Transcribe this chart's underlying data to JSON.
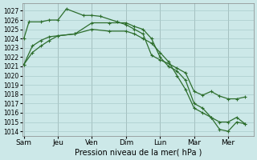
{
  "background_color": "#cce8e8",
  "grid_color": "#aacccc",
  "line_color": "#2d6e2d",
  "xlabel_text": "Pression niveau de la mer( hPa )",
  "ylim": [
    1013.5,
    1027.8
  ],
  "yticks": [
    1014,
    1015,
    1016,
    1017,
    1018,
    1019,
    1020,
    1021,
    1022,
    1023,
    1024,
    1025,
    1026,
    1027
  ],
  "x_labels": [
    "Sam",
    "Jeu",
    "Ven",
    "Dim",
    "Lun",
    "Mar",
    "Mer"
  ],
  "x_positions": [
    0,
    2,
    4,
    6,
    8,
    10,
    12
  ],
  "xlim": [
    -0.1,
    13.5
  ],
  "series": [
    {
      "x": [
        0,
        0.3,
        1.0,
        1.5,
        2.0,
        2.5,
        3.5,
        4.0,
        4.5,
        5.5,
        6.0,
        6.5,
        7.0,
        7.5,
        8.0,
        8.5,
        9.0,
        9.5,
        10.0,
        10.5,
        11.0,
        11.5,
        12.0,
        12.5,
        13.0
      ],
      "y": [
        1024.0,
        1025.8,
        1025.8,
        1026.0,
        1026.0,
        1027.2,
        1026.5,
        1026.5,
        1026.4,
        1025.8,
        1025.5,
        1025.0,
        1024.5,
        1022.2,
        1021.7,
        1021.3,
        1020.8,
        1020.3,
        1018.3,
        1017.9,
        1018.3,
        1017.8,
        1017.5,
        1017.5,
        1017.7
      ]
    },
    {
      "x": [
        0,
        0.5,
        1.0,
        1.5,
        2.0,
        3.0,
        4.0,
        5.0,
        6.0,
        6.5,
        7.0,
        7.5,
        8.0,
        8.5,
        9.0,
        9.5,
        10.0,
        10.5,
        11.0,
        11.5,
        12.0,
        12.5,
        13.0
      ],
      "y": [
        1021.2,
        1023.2,
        1023.8,
        1024.2,
        1024.3,
        1024.5,
        1025.7,
        1025.7,
        1025.7,
        1025.3,
        1025.0,
        1024.0,
        1022.0,
        1021.0,
        1020.5,
        1019.5,
        1017.0,
        1016.5,
        1015.5,
        1014.2,
        1014.0,
        1015.0,
        1014.8
      ]
    },
    {
      "x": [
        0,
        0.5,
        1.0,
        1.5,
        2.0,
        3.0,
        4.0,
        5.0,
        6.0,
        6.5,
        7.0,
        7.5,
        8.0,
        8.5,
        9.0,
        9.5,
        10.0,
        10.5,
        11.0,
        11.5,
        12.0,
        12.5,
        13.0
      ],
      "y": [
        1021.2,
        1022.5,
        1023.2,
        1023.8,
        1024.3,
        1024.5,
        1025.0,
        1024.8,
        1024.8,
        1024.5,
        1024.0,
        1023.5,
        1022.5,
        1021.5,
        1020.0,
        1018.5,
        1016.5,
        1016.0,
        1015.5,
        1015.0,
        1015.0,
        1015.5,
        1014.8
      ]
    }
  ]
}
